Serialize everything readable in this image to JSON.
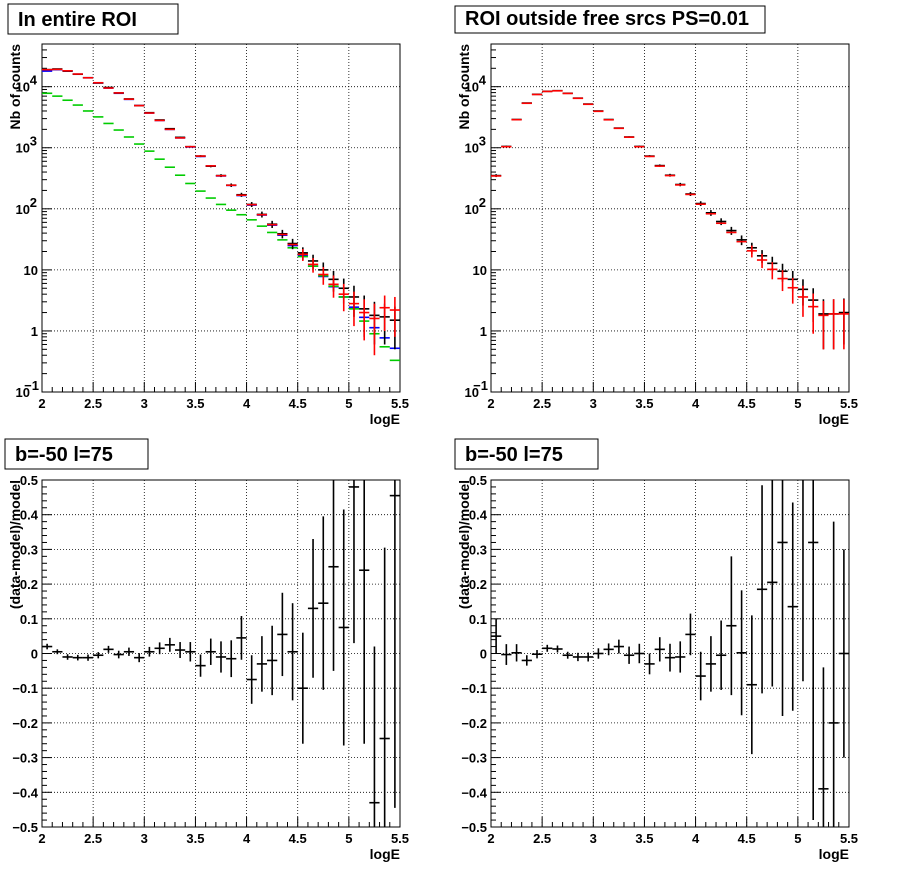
{
  "chart_data": [
    {
      "id": "p1",
      "type": "scatter",
      "title": "In entire ROI",
      "xlabel": "logE",
      "ylabel": "Nb of counts",
      "xlim": [
        2,
        5.5
      ],
      "ylim": [
        0.1,
        50000
      ],
      "yscale": "log",
      "grid": true,
      "x_ticks": [
        "2",
        "2.5",
        "3",
        "3.5",
        "4",
        "4.5",
        "5",
        "5.5"
      ],
      "series": [
        {
          "color": "#0000ff",
          "style": "hbars",
          "x": [
            2.05,
            2.15,
            2.25,
            2.35,
            2.45,
            2.55,
            2.65,
            2.75,
            2.85,
            2.95,
            3.05,
            3.15,
            3.25,
            3.35,
            3.45,
            3.55,
            3.65,
            3.75,
            3.85,
            3.95,
            4.05,
            4.15,
            4.25,
            4.35,
            4.45,
            4.55,
            4.65,
            4.75,
            4.85,
            4.95,
            5.05,
            5.15,
            5.25,
            5.35,
            5.45
          ],
          "values": [
            18000,
            19000,
            18000,
            16000,
            14000,
            11500,
            9500,
            7800,
            6200,
            4900,
            3700,
            2800,
            2000,
            1450,
            1030,
            720,
            500,
            345,
            242,
            165,
            115,
            79,
            54,
            37,
            25,
            17,
            11.5,
            7.8,
            5.3,
            3.6,
            2.45,
            1.67,
            1.13,
            0.77,
            0.52
          ]
        },
        {
          "color": "#00cc00",
          "style": "crosses",
          "x": [
            2.05,
            2.15,
            2.25,
            2.35,
            2.45,
            2.55,
            2.65,
            2.75,
            2.85,
            2.95,
            3.05,
            3.15,
            3.25,
            3.35,
            3.45,
            3.55,
            3.65,
            3.75,
            3.85,
            3.95,
            4.05,
            4.15,
            4.25,
            4.35,
            4.45,
            4.55,
            4.65,
            4.75,
            4.85,
            4.95,
            5.05,
            5.15,
            5.25,
            5.35,
            5.45
          ],
          "values": [
            7800,
            7000,
            6000,
            5000,
            4000,
            3200,
            2500,
            1950,
            1500,
            1150,
            880,
            650,
            480,
            355,
            260,
            195,
            150,
            118,
            95,
            80,
            66,
            52,
            41,
            31,
            23,
            16.5,
            11.5,
            8,
            5.4,
            3.6,
            2.3,
            1.45,
            0.9,
            0.55,
            0.33
          ]
        },
        {
          "color": "#000000",
          "style": "crosses",
          "x": [
            2.05,
            2.15,
            2.25,
            2.35,
            2.45,
            2.55,
            2.65,
            2.75,
            2.85,
            2.95,
            3.05,
            3.15,
            3.25,
            3.35,
            3.45,
            3.55,
            3.65,
            3.75,
            3.85,
            3.95,
            4.05,
            4.15,
            4.25,
            4.35,
            4.45,
            4.55,
            4.65,
            4.75,
            4.85,
            4.95,
            5.05,
            5.15,
            5.25,
            5.35,
            5.45
          ],
          "values": [
            19000,
            19500,
            18000,
            16000,
            14000,
            11500,
            9700,
            7900,
            6300,
            4900,
            3750,
            2850,
            2050,
            1480,
            1040,
            730,
            500,
            350,
            244,
            170,
            118,
            81,
            56,
            39,
            27,
            19,
            14,
            10,
            7,
            5,
            3.6,
            2.3,
            1.8,
            1.7,
            1.5
          ],
          "errors": [
            150,
            150,
            140,
            130,
            120,
            110,
            100,
            90,
            80,
            70,
            61,
            53,
            45,
            38,
            32,
            27,
            22,
            19,
            16,
            13,
            11,
            9,
            7.5,
            6.2,
            5.2,
            4.4,
            3.7,
            3.2,
            2.6,
            2.2,
            1.9,
            1.5,
            1.2,
            1.1,
            1.0
          ]
        },
        {
          "color": "#ff0000",
          "style": "hbars",
          "x": [
            2.05,
            2.15,
            2.25,
            2.35,
            2.45,
            2.55,
            2.65,
            2.75,
            2.85,
            2.95,
            3.05,
            3.15,
            3.25,
            3.35,
            3.45,
            3.55,
            3.65,
            3.75,
            3.85,
            3.95,
            4.05,
            4.15,
            4.25,
            4.35,
            4.45,
            4.55,
            4.65,
            4.75,
            4.85,
            4.95,
            5.05,
            5.15,
            5.25,
            5.35,
            5.45
          ],
          "values": [
            19000,
            19200,
            18200,
            16100,
            14000,
            11600,
            9500,
            7900,
            6250,
            4900,
            3700,
            2800,
            2000,
            1450,
            1040,
            730,
            505,
            348,
            243,
            167,
            117,
            80,
            55,
            38,
            26,
            18,
            12.3,
            8.4,
            5.8,
            4,
            2.8,
            2,
            1.6,
            2.4,
            2.2
          ],
          "errors": [
            0,
            0,
            0,
            0,
            0,
            0,
            0,
            0,
            0,
            0,
            0,
            0,
            0,
            0,
            0,
            0,
            0,
            0,
            0,
            0,
            0,
            0,
            0,
            0,
            0,
            4.0,
            3.3,
            2.7,
            2.3,
            1.9,
            1.6,
            1.3,
            1.2,
            1.4,
            1.4
          ]
        }
      ]
    },
    {
      "id": "p2",
      "type": "scatter",
      "title": "ROI outside free srcs PS=0.01",
      "xlabel": "logE",
      "ylabel": "Nb of counts",
      "xlim": [
        2,
        5.5
      ],
      "ylim": [
        0.1,
        50000
      ],
      "yscale": "log",
      "grid": true,
      "x_ticks": [
        "2",
        "2.5",
        "3",
        "3.5",
        "4",
        "4.5",
        "5",
        "5.5"
      ],
      "series": [
        {
          "color": "#000000",
          "style": "crosses",
          "x": [
            2.05,
            2.15,
            2.25,
            2.35,
            2.45,
            2.55,
            2.65,
            2.75,
            2.85,
            2.95,
            3.05,
            3.15,
            3.25,
            3.35,
            3.45,
            3.55,
            3.65,
            3.75,
            3.85,
            3.95,
            4.05,
            4.15,
            4.25,
            4.35,
            4.45,
            4.55,
            4.65,
            4.75,
            4.85,
            4.95,
            5.05,
            5.15,
            5.25,
            5.35,
            5.45
          ],
          "values": [
            350,
            1050,
            2900,
            5400,
            7500,
            8400,
            8600,
            7800,
            6500,
            5200,
            4000,
            2900,
            2100,
            1500,
            1050,
            730,
            510,
            355,
            250,
            175,
            122,
            86,
            62,
            44,
            31,
            23,
            17,
            12.8,
            9.5,
            7,
            4.8,
            3.2,
            1.9,
            1.9,
            2.0
          ],
          "errors": [
            19,
            32,
            54,
            73,
            87,
            92,
            93,
            88,
            81,
            72,
            63,
            54,
            46,
            39,
            32,
            27,
            23,
            19,
            16,
            13,
            11,
            9.3,
            7.9,
            6.6,
            5.6,
            4.8,
            4.1,
            3.6,
            3.1,
            2.6,
            2.2,
            1.8,
            1.4,
            1.4,
            1.4
          ]
        },
        {
          "color": "#ff0000",
          "style": "crosses",
          "x": [
            2.05,
            2.15,
            2.25,
            2.35,
            2.45,
            2.55,
            2.65,
            2.75,
            2.85,
            2.95,
            3.05,
            3.15,
            3.25,
            3.35,
            3.45,
            3.55,
            3.65,
            3.75,
            3.85,
            3.95,
            4.05,
            4.15,
            4.25,
            4.35,
            4.45,
            4.55,
            4.65,
            4.75,
            4.85,
            4.95,
            5.05,
            5.15,
            5.25,
            5.35,
            5.45
          ],
          "values": [
            345,
            1040,
            2880,
            5350,
            7450,
            8350,
            8550,
            7750,
            6450,
            5150,
            3950,
            2870,
            2080,
            1490,
            1040,
            720,
            500,
            350,
            246,
            172,
            119,
            83,
            58,
            41,
            29,
            20.5,
            14.5,
            10.2,
            7.2,
            5.1,
            3.6,
            2.5,
            1.8,
            1.9,
            1.9
          ],
          "errors": [
            0,
            0,
            0,
            0,
            0,
            0,
            0,
            0,
            0,
            0,
            0,
            0,
            0,
            0,
            0,
            0,
            0,
            0,
            0,
            0,
            0,
            0,
            0,
            0,
            0,
            4.5,
            3.8,
            3.2,
            2.7,
            2.3,
            1.9,
            1.6,
            1.3,
            1.4,
            1.4
          ]
        }
      ]
    },
    {
      "id": "p3",
      "type": "scatter",
      "title": "b=-50 l=75",
      "xlabel": "logE",
      "ylabel": "(data-model)/model",
      "xlim": [
        2,
        5.5
      ],
      "ylim": [
        -0.5,
        0.5
      ],
      "grid": true,
      "x_ticks": [
        "2",
        "2.5",
        "3",
        "3.5",
        "4",
        "4.5",
        "5",
        "5.5"
      ],
      "y_ticks": [
        "−0.5",
        "−0.4",
        "−0.3",
        "−0.2",
        "−0.1",
        "0",
        "0.1",
        "0.2",
        "0.3",
        "0.4",
        "0.5"
      ],
      "series": [
        {
          "color": "#000000",
          "style": "crosses",
          "x": [
            2.05,
            2.15,
            2.25,
            2.35,
            2.45,
            2.55,
            2.65,
            2.75,
            2.85,
            2.95,
            3.05,
            3.15,
            3.25,
            3.35,
            3.45,
            3.55,
            3.65,
            3.75,
            3.85,
            3.95,
            4.05,
            4.15,
            4.25,
            4.35,
            4.45,
            4.55,
            4.65,
            4.75,
            4.85,
            4.95,
            5.05,
            5.15,
            5.25,
            5.35,
            5.45
          ],
          "values": [
            0.02,
            0.005,
            -0.01,
            -0.012,
            -0.012,
            -0.005,
            0.012,
            -0.003,
            0.005,
            -0.012,
            0.005,
            0.015,
            0.025,
            0.01,
            0.005,
            -0.035,
            0.005,
            -0.01,
            -0.015,
            0.045,
            -0.075,
            -0.03,
            -0.02,
            0.055,
            0.005,
            -0.1,
            0.13,
            0.145,
            0.25,
            0.075,
            0.48,
            0.24,
            -0.43,
            -0.245,
            0.455
          ],
          "errors": [
            0.008,
            0.007,
            0.008,
            0.008,
            0.009,
            0.009,
            0.01,
            0.011,
            0.012,
            0.013,
            0.014,
            0.017,
            0.02,
            0.023,
            0.028,
            0.032,
            0.038,
            0.045,
            0.053,
            0.063,
            0.07,
            0.08,
            0.1,
            0.12,
            0.14,
            0.16,
            0.2,
            0.25,
            0.3,
            0.34,
            0.45,
            0.5,
            0.45,
            0.55,
            0.9
          ]
        }
      ]
    },
    {
      "id": "p4",
      "type": "scatter",
      "title": "b=-50 l=75",
      "xlabel": "logE",
      "ylabel": "(data-model)/model",
      "xlim": [
        2,
        5.5
      ],
      "ylim": [
        -0.5,
        0.5
      ],
      "grid": true,
      "x_ticks": [
        "2",
        "2.5",
        "3",
        "3.5",
        "4",
        "4.5",
        "5",
        "5.5"
      ],
      "y_ticks": [
        "−0.5",
        "−0.4",
        "−0.3",
        "−0.2",
        "−0.1",
        "0",
        "0.1",
        "0.2",
        "0.3",
        "0.4",
        "0.5"
      ],
      "series": [
        {
          "color": "#000000",
          "style": "crosses",
          "x": [
            2.05,
            2.15,
            2.25,
            2.35,
            2.45,
            2.55,
            2.65,
            2.75,
            2.85,
            2.95,
            3.05,
            3.15,
            3.25,
            3.35,
            3.45,
            3.55,
            3.65,
            3.75,
            3.85,
            3.95,
            4.05,
            4.15,
            4.25,
            4.35,
            4.45,
            4.55,
            4.65,
            4.75,
            4.85,
            4.95,
            5.05,
            5.15,
            5.25,
            5.35,
            5.45
          ],
          "values": [
            0.05,
            -0.003,
            0.002,
            -0.02,
            -0.002,
            0.015,
            0.013,
            -0.005,
            -0.01,
            -0.01,
            0.0,
            0.012,
            0.02,
            -0.005,
            0.0,
            -0.03,
            0.012,
            -0.012,
            -0.01,
            0.055,
            -0.065,
            -0.03,
            -0.005,
            0.08,
            0.002,
            -0.09,
            0.185,
            0.205,
            0.32,
            0.135,
            0.52,
            0.32,
            -0.39,
            -0.2,
            0.0
          ],
          "errors": [
            0.05,
            0.03,
            0.025,
            0.015,
            0.012,
            0.01,
            0.01,
            0.01,
            0.012,
            0.013,
            0.015,
            0.017,
            0.02,
            0.025,
            0.028,
            0.03,
            0.035,
            0.04,
            0.045,
            0.06,
            0.07,
            0.08,
            0.1,
            0.2,
            0.18,
            0.2,
            0.3,
            0.3,
            0.5,
            0.3,
            0.6,
            0.8,
            0.35,
            0.58,
            0.3
          ]
        }
      ]
    }
  ]
}
